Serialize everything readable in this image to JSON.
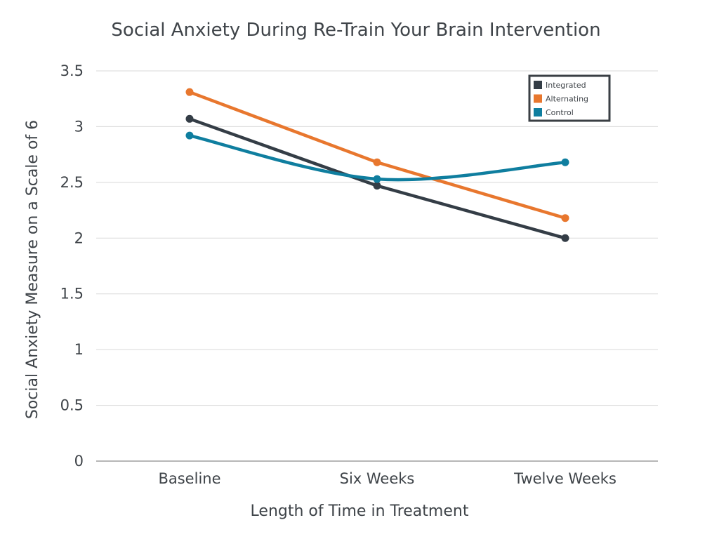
{
  "chart_data": {
    "type": "line",
    "title": "Social Anxiety During Re-Train Your Brain Intervention",
    "xlabel": "Length of Time in Treatment",
    "ylabel": "Social Anxiety Measure on a Scale of 6",
    "categories": [
      "Baseline",
      "Six Weeks",
      "Twelve Weeks"
    ],
    "ylim": [
      0,
      3.5
    ],
    "yticks": [
      0,
      0.5,
      1,
      1.5,
      2,
      2.5,
      3,
      3.5
    ],
    "ytick_labels": [
      "0",
      "0.5",
      "1",
      "1.5",
      "2",
      "2.5",
      "3",
      "3.5"
    ],
    "grid": true,
    "legend_position": "top-right",
    "series": [
      {
        "name": "Integrated",
        "color": "#343d46",
        "values": [
          3.07,
          2.47,
          2.0
        ],
        "smooth": false
      },
      {
        "name": "Alternating",
        "color": "#e8772e",
        "values": [
          3.31,
          2.68,
          2.18
        ],
        "smooth": false
      },
      {
        "name": "Control",
        "color": "#0f7e9f",
        "values": [
          2.92,
          2.53,
          2.68
        ],
        "smooth": true
      }
    ]
  }
}
